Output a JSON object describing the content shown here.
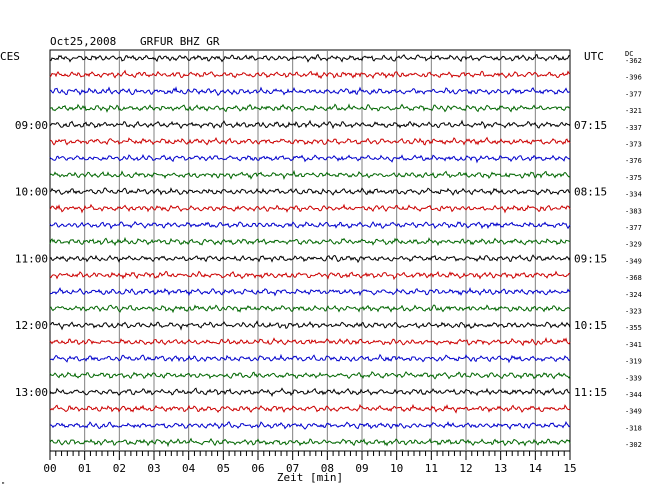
{
  "header": {
    "date": "Oct25,2008",
    "station": "GRFUR BHZ GR",
    "left_zone": "CES",
    "right_zone": "UTC",
    "dc_label": "DC"
  },
  "footer": {
    "xlabel": "Zeit [min]",
    "mark": "\""
  },
  "chart_data": {
    "type": "line",
    "title": "Oct25,2008 GRFUR BHZ GR",
    "xlabel": "Zeit [min]",
    "ylabel": "",
    "xlim": [
      0,
      15
    ],
    "x_ticks": [
      "00",
      "01",
      "02",
      "03",
      "04",
      "05",
      "06",
      "07",
      "08",
      "09",
      "10",
      "11",
      "12",
      "13",
      "14",
      "15"
    ],
    "grid": true,
    "row_colors": [
      "#000000",
      "#cc0000",
      "#0000cc",
      "#006600"
    ],
    "left_time_labels": [
      {
        "row": 4,
        "label": "09:00"
      },
      {
        "row": 8,
        "label": "10:00"
      },
      {
        "row": 12,
        "label": "11:00"
      },
      {
        "row": 16,
        "label": "12:00"
      },
      {
        "row": 20,
        "label": "13:00"
      }
    ],
    "right_time_labels": [
      {
        "row": 4,
        "label": "07:15"
      },
      {
        "row": 8,
        "label": "08:15"
      },
      {
        "row": 12,
        "label": "09:15"
      },
      {
        "row": 16,
        "label": "10:15"
      },
      {
        "row": 20,
        "label": "11:15"
      }
    ],
    "dc_offsets": [
      -362,
      -396,
      -377,
      -321,
      -337,
      -373,
      -376,
      -375,
      -334,
      -383,
      -377,
      -329,
      -349,
      -368,
      -324,
      -323,
      -355,
      -341,
      -319,
      -339,
      -344,
      -349,
      -318,
      -302
    ]
  }
}
